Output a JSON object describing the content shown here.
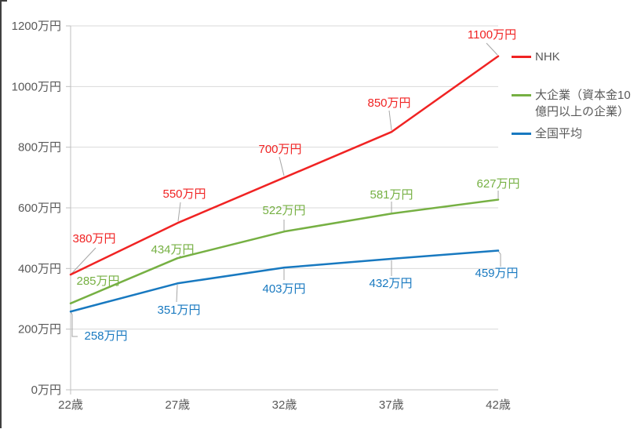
{
  "chart_data": {
    "type": "line",
    "title": "",
    "x_categories": [
      "22歳",
      "27歳",
      "32歳",
      "37歳",
      "42歳"
    ],
    "y_tick_labels": [
      "0万円",
      "200万円",
      "400万円",
      "600万円",
      "800万円",
      "1000万円",
      "1200万円"
    ],
    "ylim": [
      0,
      1200
    ],
    "y_tick_step": 200,
    "unit": "万円",
    "grid": true,
    "legend_position": "right",
    "series": [
      {
        "name": "NHK",
        "color": "#f02323",
        "values": [
          380,
          550,
          700,
          850,
          1100
        ],
        "point_labels": [
          "380万円",
          "550万円",
          "700万円",
          "850万円",
          "1100万円"
        ]
      },
      {
        "name": "大企業（資本金10億円以上の企業）",
        "color": "#76b043",
        "values": [
          285,
          434,
          522,
          581,
          627
        ],
        "point_labels": [
          "285万円",
          "434万円",
          "522万円",
          "581万円",
          "627万円"
        ]
      },
      {
        "name": "全国平均",
        "color": "#1879c0",
        "values": [
          258,
          351,
          403,
          432,
          459
        ],
        "point_labels": [
          "258万円",
          "351万円",
          "403万円",
          "432万円",
          "459万円"
        ]
      }
    ],
    "colors": {
      "axis_line": "#bfbfbf",
      "gridline": "#d9d9d9",
      "tick_text": "#595959",
      "legend_text": "#595959",
      "leader_line": "#a6a6a6",
      "window_border": "#3f3f3f"
    }
  }
}
